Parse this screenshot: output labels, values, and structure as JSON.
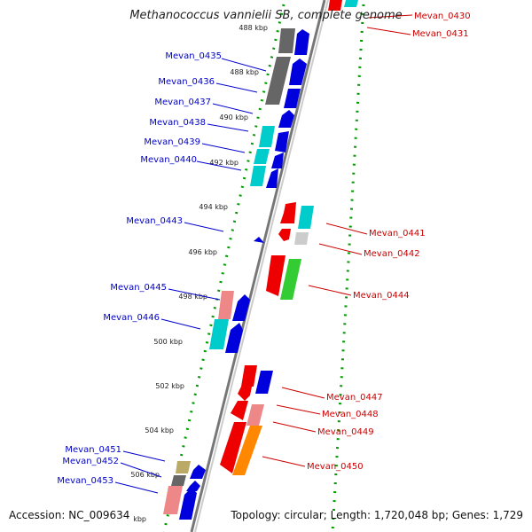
{
  "title": "Methanococcus vannielii SB, complete genome",
  "accession": "Accession: NC_009634",
  "topology": "Topology: circular; Length: 1,720,048 bp; Genes: 1,729",
  "colors": {
    "backbone": "#888888",
    "tick": "#009900",
    "label_left": "#0000cc",
    "label_right": "#cc0000"
  },
  "ticks": [
    "488 kbp",
    "488 kbp",
    "490 kbp",
    "492 kbp",
    "494 kbp",
    "496 kbp",
    "498 kbp",
    "500 kbp",
    "502 kbp",
    "504 kbp",
    "506 kbp",
    "kbp"
  ],
  "genes_left": [
    {
      "label": "Mevan_0435"
    },
    {
      "label": "Mevan_0436"
    },
    {
      "label": "Mevan_0437"
    },
    {
      "label": "Mevan_0438"
    },
    {
      "label": "Mevan_0439"
    },
    {
      "label": "Mevan_0440"
    },
    {
      "label": "Mevan_0443"
    },
    {
      "label": "Mevan_0445"
    },
    {
      "label": "Mevan_0446"
    },
    {
      "label": "Mevan_0451"
    },
    {
      "label": "Mevan_0452"
    },
    {
      "label": "Mevan_0453"
    }
  ],
  "genes_right": [
    {
      "label": "Mevan_0430"
    },
    {
      "label": "Mevan_0431"
    },
    {
      "label": "Mevan_0441"
    },
    {
      "label": "Mevan_0442"
    },
    {
      "label": "Mevan_0444"
    },
    {
      "label": "Mevan_0447"
    },
    {
      "label": "Mevan_0448"
    },
    {
      "label": "Mevan_0449"
    },
    {
      "label": "Mevan_0450"
    }
  ]
}
